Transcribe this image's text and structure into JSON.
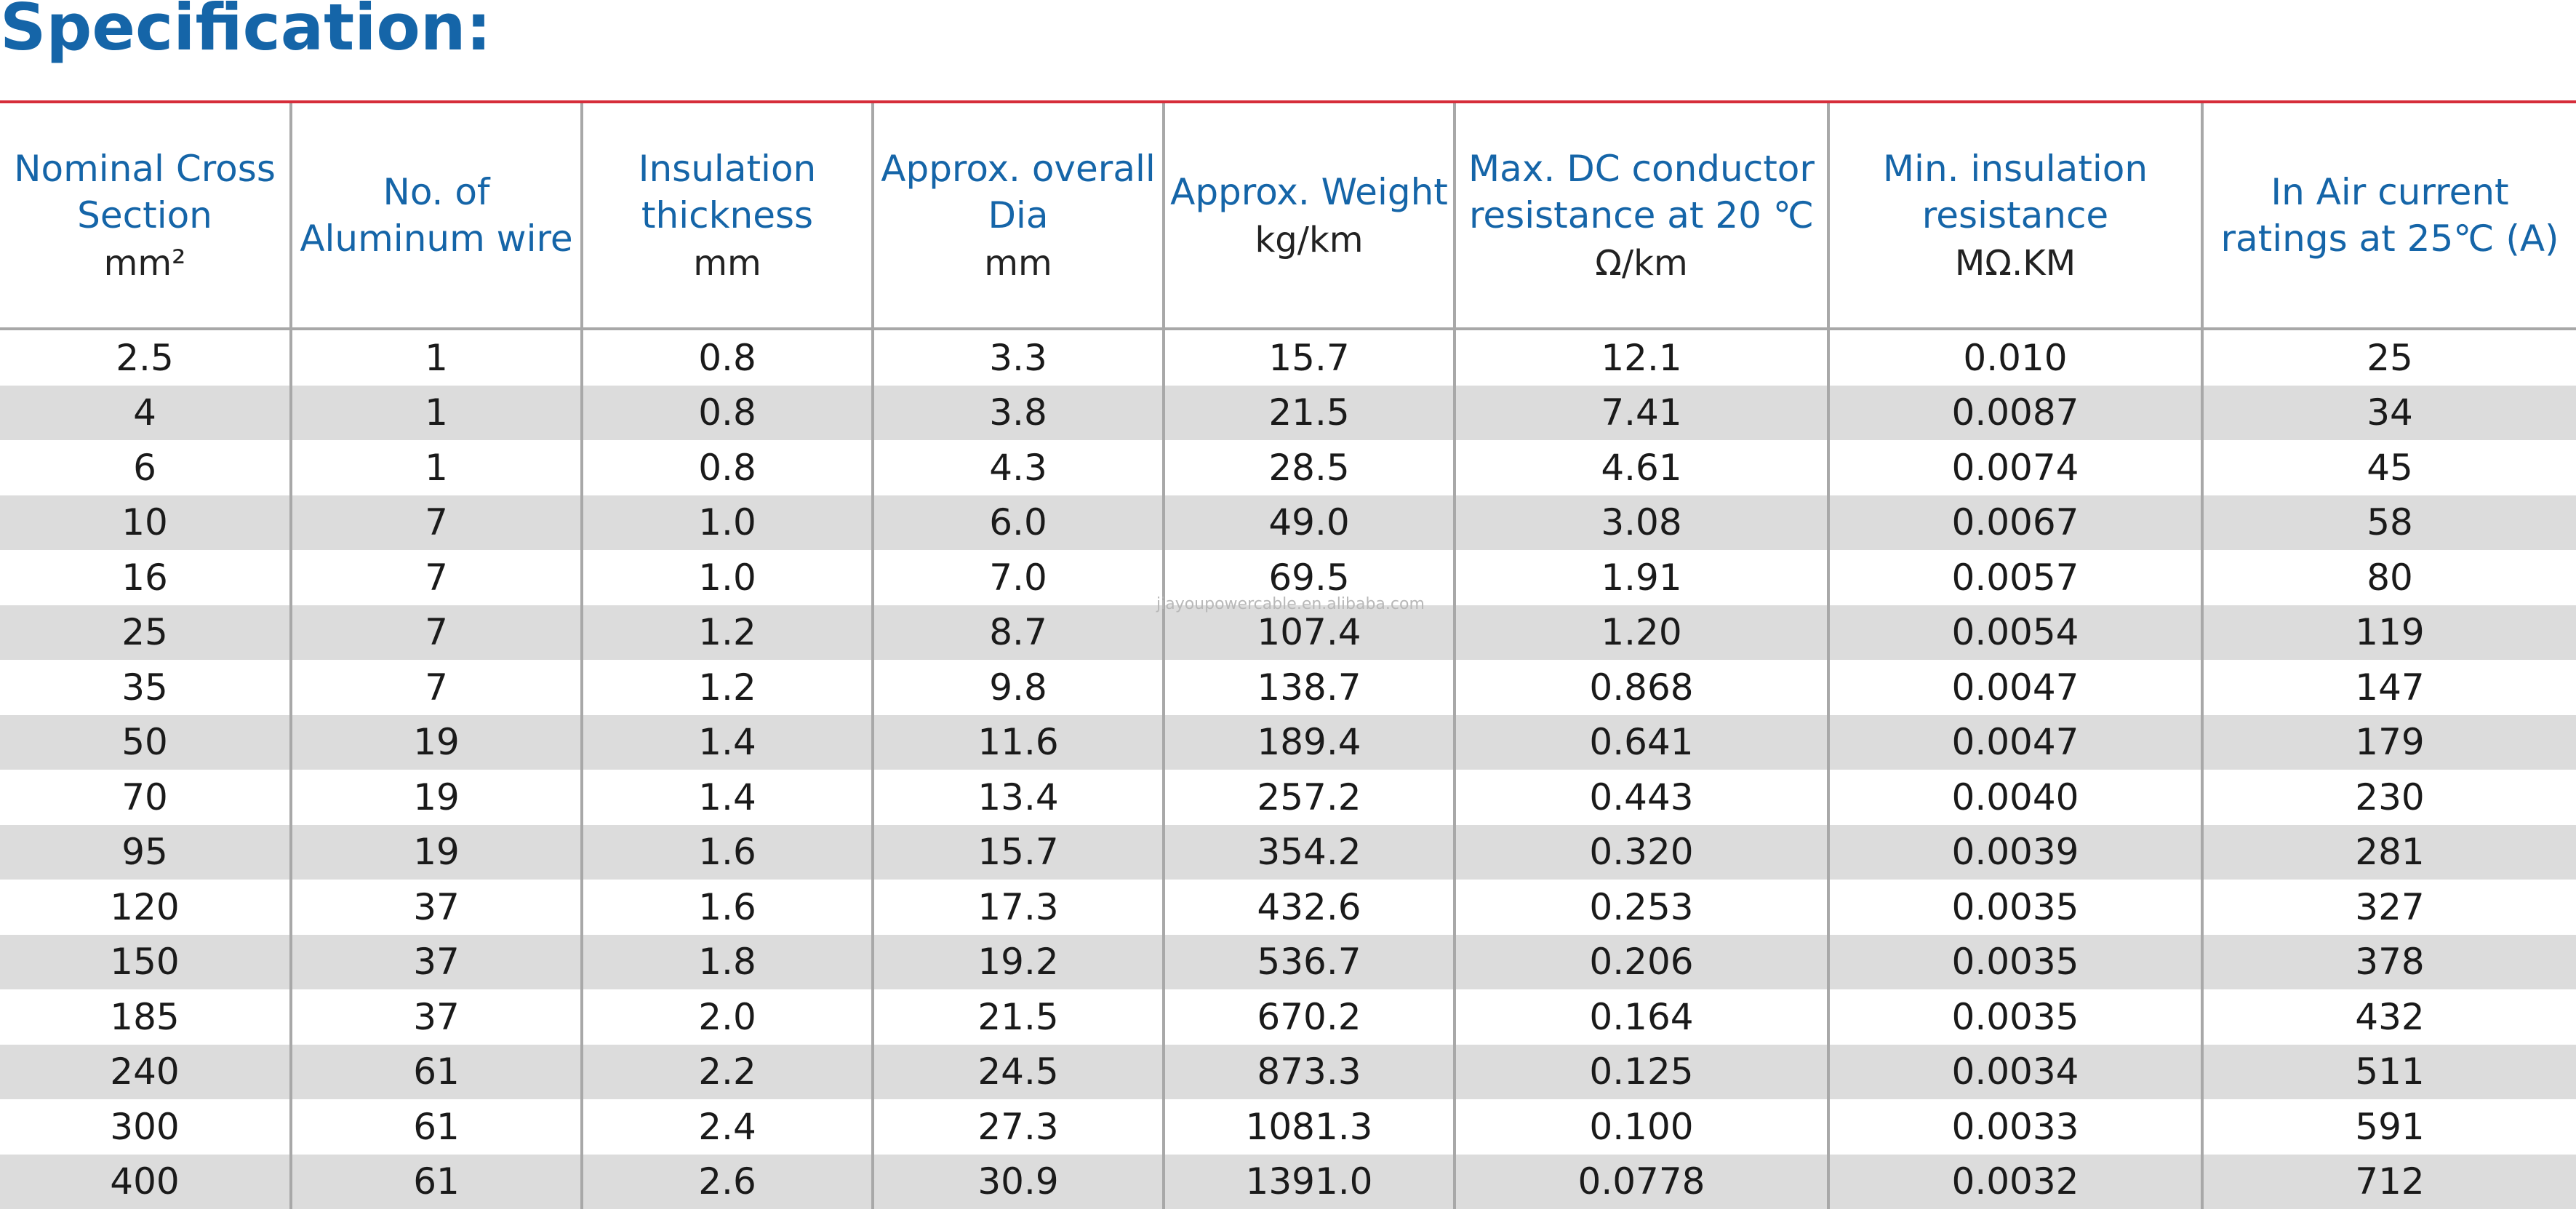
{
  "title": "Specification:",
  "watermark": "jiayoupowercable.en.alibaba.com",
  "colors": {
    "title": "#1565a8",
    "header_text": "#1565a8",
    "top_rule": "#d62d3a",
    "row_alt": "#dcdcdc",
    "grid": "#a8a8a8"
  },
  "headers": [
    {
      "label": "Nominal Cross Section",
      "unit": "mm²"
    },
    {
      "label": "No. of Aluminum wire",
      "unit": ""
    },
    {
      "label": "Insulation thickness",
      "unit": "mm"
    },
    {
      "label": "Approx. overall Dia",
      "unit": "mm"
    },
    {
      "label": "Approx. Weight",
      "unit": "kg/km"
    },
    {
      "label": "Max. DC conductor resistance at 20 ℃",
      "unit": "Ω/km"
    },
    {
      "label": "Min. insulation resistance",
      "unit": "MΩ.KM"
    },
    {
      "label": "In Air current ratings at 25℃ (A)",
      "unit": ""
    }
  ],
  "rows": [
    [
      "2.5",
      "1",
      "0.8",
      "3.3",
      "15.7",
      "12.1",
      "0.010",
      "25"
    ],
    [
      "4",
      "1",
      "0.8",
      "3.8",
      "21.5",
      "7.41",
      "0.0087",
      "34"
    ],
    [
      "6",
      "1",
      "0.8",
      "4.3",
      "28.5",
      "4.61",
      "0.0074",
      "45"
    ],
    [
      "10",
      "7",
      "1.0",
      "6.0",
      "49.0",
      "3.08",
      "0.0067",
      "58"
    ],
    [
      "16",
      "7",
      "1.0",
      "7.0",
      "69.5",
      "1.91",
      "0.0057",
      "80"
    ],
    [
      "25",
      "7",
      "1.2",
      "8.7",
      "107.4",
      "1.20",
      "0.0054",
      "119"
    ],
    [
      "35",
      "7",
      "1.2",
      "9.8",
      "138.7",
      "0.868",
      "0.0047",
      "147"
    ],
    [
      "50",
      "19",
      "1.4",
      "11.6",
      "189.4",
      "0.641",
      "0.0047",
      "179"
    ],
    [
      "70",
      "19",
      "1.4",
      "13.4",
      "257.2",
      "0.443",
      "0.0040",
      "230"
    ],
    [
      "95",
      "19",
      "1.6",
      "15.7",
      "354.2",
      "0.320",
      "0.0039",
      "281"
    ],
    [
      "120",
      "37",
      "1.6",
      "17.3",
      "432.6",
      "0.253",
      "0.0035",
      "327"
    ],
    [
      "150",
      "37",
      "1.8",
      "19.2",
      "536.7",
      "0.206",
      "0.0035",
      "378"
    ],
    [
      "185",
      "37",
      "2.0",
      "21.5",
      "670.2",
      "0.164",
      "0.0035",
      "432"
    ],
    [
      "240",
      "61",
      "2.2",
      "24.5",
      "873.3",
      "0.125",
      "0.0034",
      "511"
    ],
    [
      "300",
      "61",
      "2.4",
      "27.3",
      "1081.3",
      "0.100",
      "0.0033",
      "591"
    ],
    [
      "400",
      "61",
      "2.6",
      "30.9",
      "1391.0",
      "0.0778",
      "0.0032",
      "712"
    ]
  ]
}
